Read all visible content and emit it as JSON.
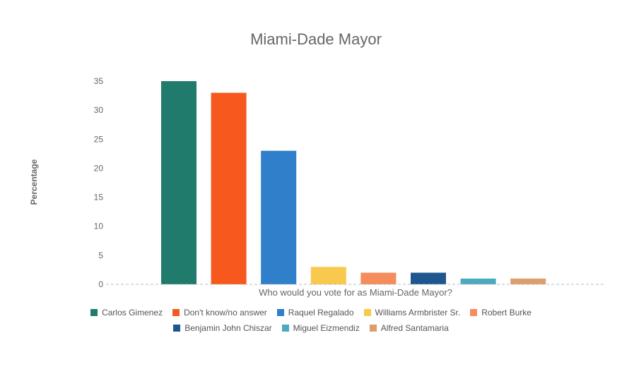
{
  "chart_data": {
    "type": "bar",
    "title": "Miami-Dade Mayor",
    "xlabel": "Who would you vote for as Miami-Dade Mayor?",
    "ylabel": "Percentage",
    "ylim": [
      0,
      35
    ],
    "yticks": [
      0,
      5,
      10,
      15,
      20,
      25,
      30,
      35
    ],
    "grid": false,
    "legend_position": "bottom",
    "series": [
      {
        "name": "Carlos Gimenez",
        "value": 35,
        "color": "#207b6d"
      },
      {
        "name": "Don't know/no answer",
        "value": 33,
        "color": "#f7581e"
      },
      {
        "name": "Raquel Regalado",
        "value": 23,
        "color": "#2f7fcb"
      },
      {
        "name": "Williams Armbrister Sr.",
        "value": 3,
        "color": "#f9c94d"
      },
      {
        "name": "Robert Burke",
        "value": 2,
        "color": "#f58c5b"
      },
      {
        "name": "Benjamin John Chiszar",
        "value": 2,
        "color": "#1e5790"
      },
      {
        "name": "Miguel Eizmendiz",
        "value": 1,
        "color": "#4caac0"
      },
      {
        "name": "Alfred Santamaria",
        "value": 1,
        "color": "#de9e6c"
      }
    ]
  },
  "legend_rows": [
    [
      "Carlos Gimenez",
      "Don't know/no answer",
      "Raquel Regalado",
      "Williams Armbrister Sr.",
      "Robert Burke"
    ],
    [
      "Benjamin John Chiszar",
      "Miguel Eizmendiz",
      "Alfred Santamaria"
    ]
  ]
}
